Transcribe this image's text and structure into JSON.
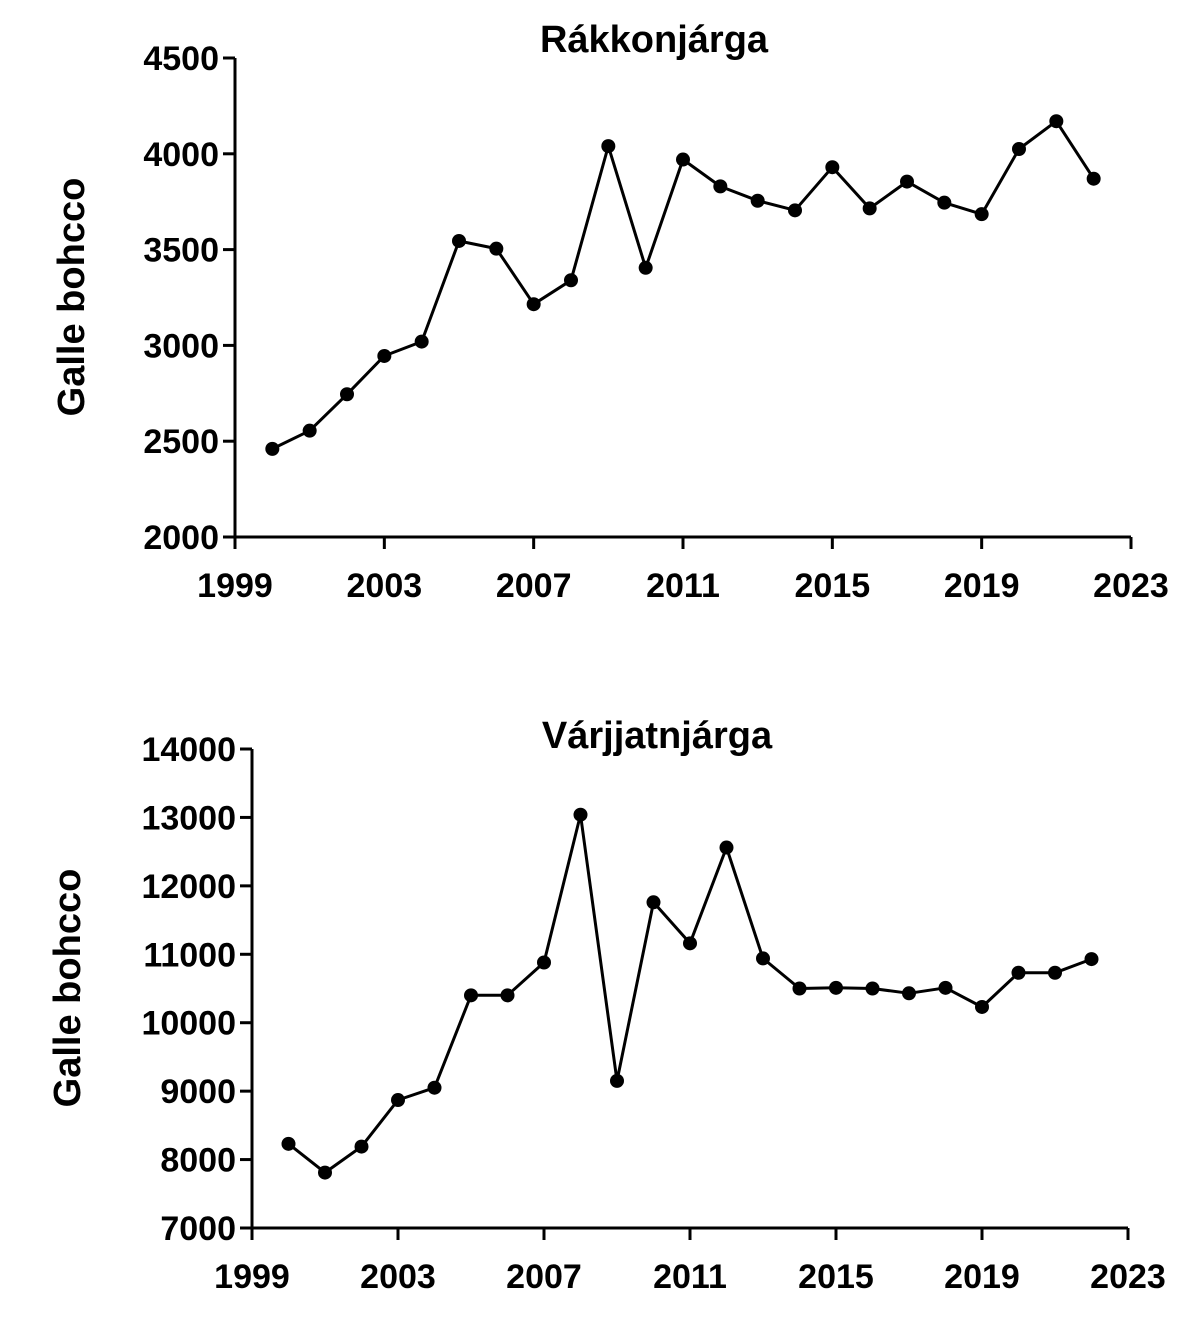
{
  "chart_data": [
    {
      "type": "line",
      "title": "Rákkonjárga",
      "xlabel": "",
      "ylabel": "Galle bohcco",
      "xlim": [
        1999,
        2023
      ],
      "ylim": [
        2000,
        4500
      ],
      "xticks": [
        1999,
        2003,
        2007,
        2011,
        2015,
        2019,
        2023
      ],
      "yticks": [
        2000,
        2500,
        3000,
        3500,
        4000,
        4500
      ],
      "x": [
        2000,
        2001,
        2002,
        2003,
        2004,
        2005,
        2006,
        2007,
        2008,
        2009,
        2010,
        2011,
        2012,
        2013,
        2014,
        2015,
        2016,
        2017,
        2018,
        2019,
        2020,
        2021,
        2022
      ],
      "values": [
        2460,
        2555,
        2745,
        2945,
        3020,
        3545,
        3505,
        3215,
        3340,
        4040,
        3405,
        3970,
        3830,
        3755,
        3705,
        3930,
        3715,
        3855,
        3745,
        3685,
        4025,
        4170,
        3870
      ],
      "grid": false,
      "color": "#000000"
    },
    {
      "type": "line",
      "title": "Várjjatnjárga",
      "xlabel": "",
      "ylabel": "Galle bohcco",
      "xlim": [
        1999,
        2023
      ],
      "ylim": [
        7000,
        14000
      ],
      "xticks": [
        1999,
        2003,
        2007,
        2011,
        2015,
        2019,
        2023
      ],
      "yticks": [
        7000,
        8000,
        9000,
        10000,
        11000,
        12000,
        13000,
        14000
      ],
      "x": [
        2000,
        2001,
        2002,
        2003,
        2004,
        2005,
        2006,
        2007,
        2008,
        2009,
        2010,
        2011,
        2012,
        2013,
        2014,
        2015,
        2016,
        2017,
        2018,
        2019,
        2020,
        2021,
        2022
      ],
      "values": [
        8230,
        7810,
        8190,
        8870,
        9050,
        10400,
        10400,
        10880,
        13040,
        9150,
        11760,
        11160,
        12560,
        10940,
        10500,
        10510,
        10500,
        10430,
        10510,
        10230,
        10730,
        10730,
        10930
      ],
      "grid": false,
      "color": "#000000"
    }
  ]
}
